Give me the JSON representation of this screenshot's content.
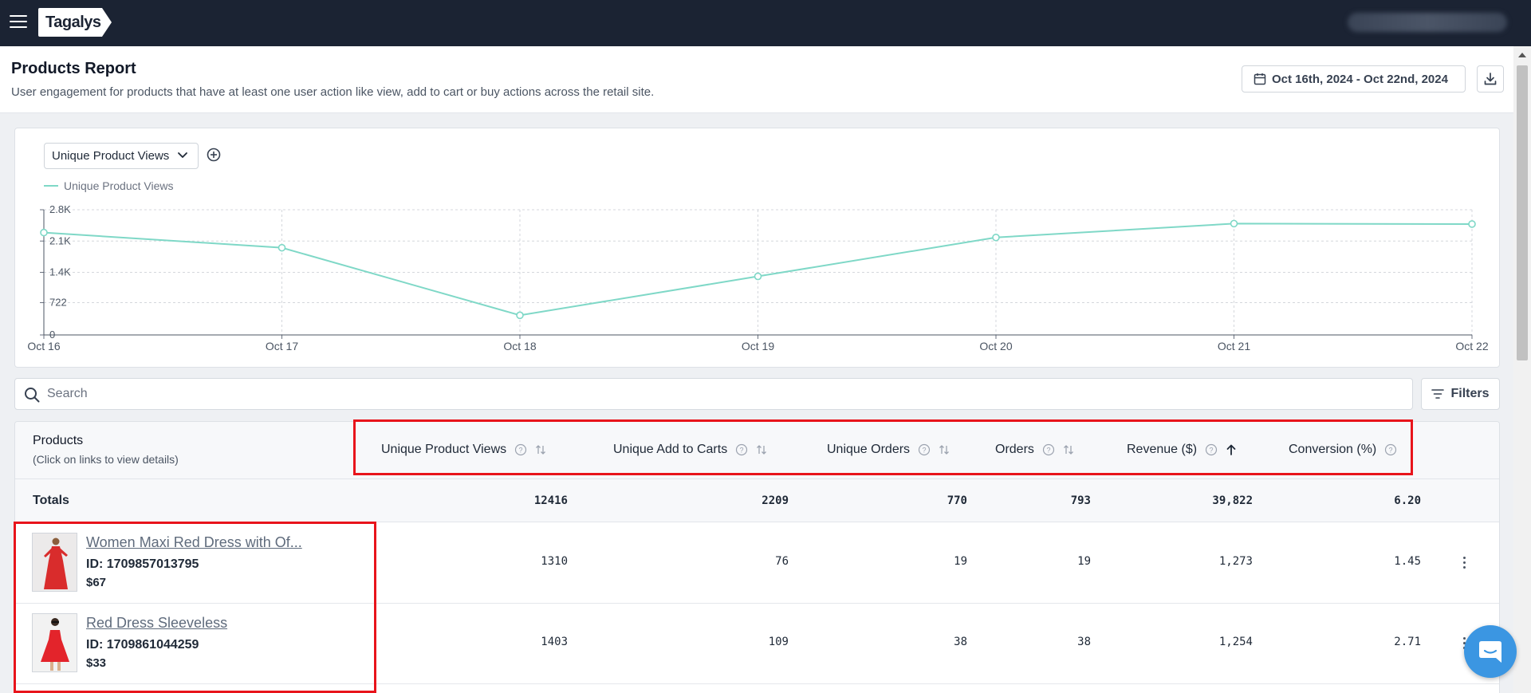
{
  "app": {
    "logo": "Tagalys"
  },
  "header": {
    "title": "Products Report",
    "subtitle": "User engagement for products that have at least one user action like view, add to cart or buy actions across the retail site.",
    "date_range": "Oct 16th, 2024 - Oct 22nd, 2024"
  },
  "chart_controls": {
    "metric_selected": "Unique Product Views"
  },
  "chart_data": {
    "type": "line",
    "title": "",
    "xlabel": "",
    "ylabel": "",
    "categories": [
      "Oct 16",
      "Oct 17",
      "Oct 18",
      "Oct 19",
      "Oct 20",
      "Oct 21",
      "Oct 22"
    ],
    "series": [
      {
        "name": "Unique Product Views",
        "values": [
          2290,
          1950,
          440,
          1310,
          2180,
          2490,
          2480
        ],
        "color": "#7fd8c7"
      }
    ],
    "ylim": [
      0,
      2800
    ],
    "yticks": [
      0,
      722,
      1400,
      2100,
      2800
    ],
    "ytick_labels": [
      "0",
      "722",
      "1.4K",
      "2.1K",
      "2.8K"
    ],
    "grid": true,
    "legend": "top-left"
  },
  "search": {
    "placeholder": "Search"
  },
  "filters": {
    "label": "Filters"
  },
  "table": {
    "products_header": "Products",
    "products_hint": "(Click on links to view details)",
    "columns": [
      {
        "label": "Unique Product Views",
        "sort": "none"
      },
      {
        "label": "Unique Add to Carts",
        "sort": "none"
      },
      {
        "label": "Unique Orders",
        "sort": "none"
      },
      {
        "label": "Orders",
        "sort": "none"
      },
      {
        "label": "Revenue ($)",
        "sort": "ascending"
      },
      {
        "label": "Conversion (%)",
        "sort": "none"
      }
    ],
    "totals": {
      "label": "Totals",
      "values": [
        "12416",
        "2209",
        "770",
        "793",
        "39,822",
        "6.20"
      ]
    },
    "rows": [
      {
        "name": "Women Maxi Red Dress with Of...",
        "id": "ID: 1709857013795",
        "price": "$67",
        "values": [
          "1310",
          "76",
          "19",
          "19",
          "1,273",
          "1.45"
        ]
      },
      {
        "name": "Red Dress Sleeveless",
        "id": "ID: 1709861044259",
        "price": "$33",
        "values": [
          "1403",
          "109",
          "38",
          "38",
          "1,254",
          "2.71"
        ]
      }
    ]
  },
  "colors": {
    "topbar": "#1b2333",
    "accent_line": "#7fd8c7",
    "highlight": "#e8141b",
    "chat": "#3b96e2"
  }
}
